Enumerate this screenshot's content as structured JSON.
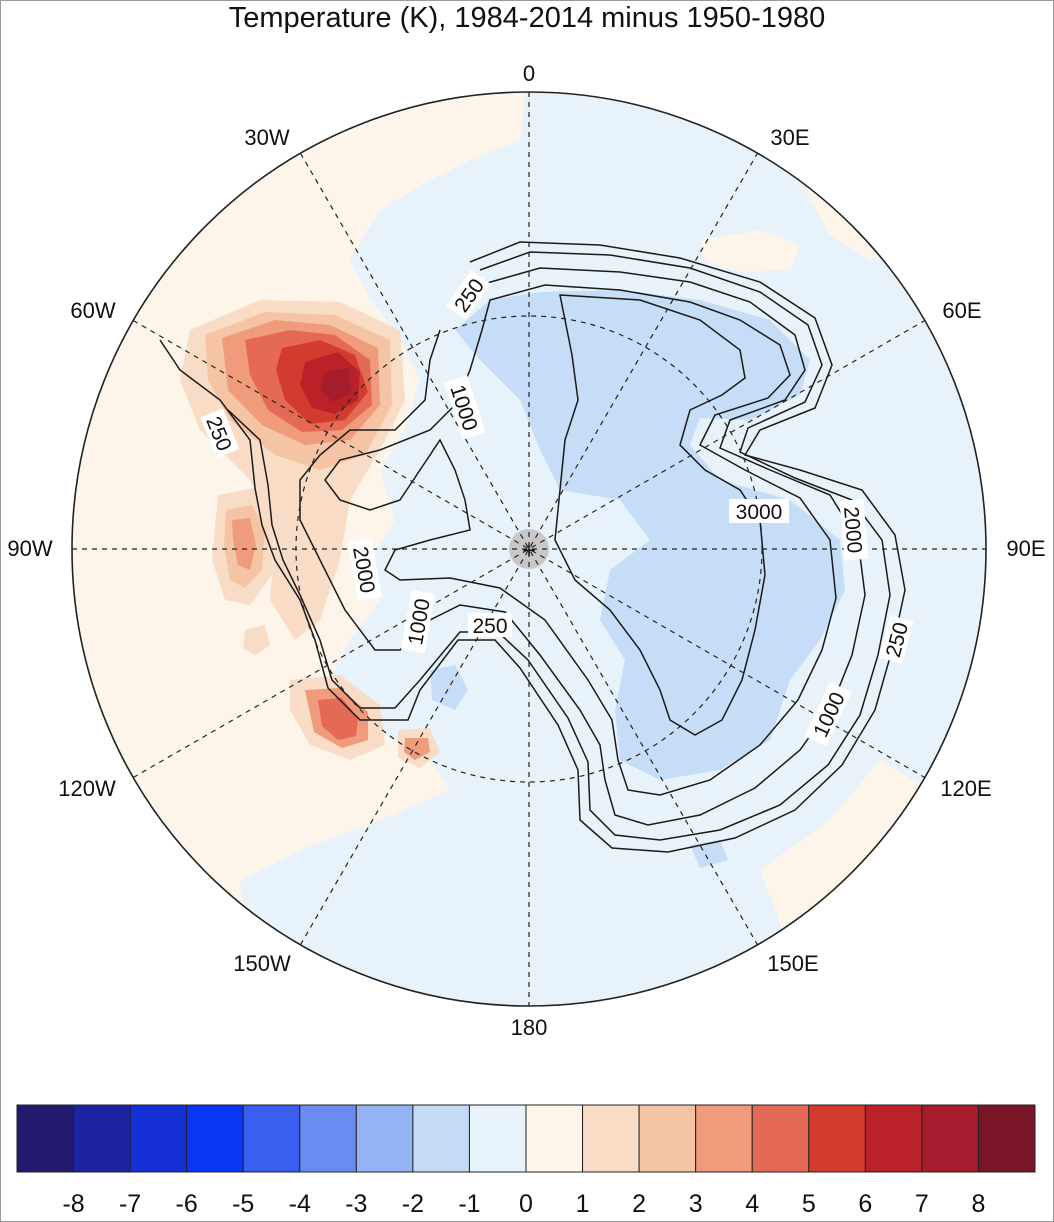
{
  "title": "Temperature (K), 1984-2014 minus 1950-1980",
  "map": {
    "projection": "south polar stereographic",
    "longitude_labels": [
      {
        "text": "0",
        "lon": 0
      },
      {
        "text": "30E",
        "lon": 30
      },
      {
        "text": "60E",
        "lon": 60
      },
      {
        "text": "90E",
        "lon": 90
      },
      {
        "text": "120E",
        "lon": 120
      },
      {
        "text": "150E",
        "lon": 150
      },
      {
        "text": "180",
        "lon": 180
      },
      {
        "text": "150W",
        "lon": -150
      },
      {
        "text": "120W",
        "lon": -120
      },
      {
        "text": "90W",
        "lon": -90
      },
      {
        "text": "60W",
        "lon": -60
      },
      {
        "text": "30W",
        "lon": -30
      }
    ],
    "elevation_contours": [
      "250",
      "1000",
      "2000",
      "3000"
    ],
    "contour_labels": [
      "250",
      "1000",
      "250",
      "2000",
      "1000",
      "250",
      "3000",
      "2000",
      "1000",
      "250"
    ],
    "colors": {
      "background": "#fdf5ea",
      "neg1": "#e8f2fb",
      "neg2": "#c5ddf6",
      "pos1": "#fce9d8",
      "pos2": "#f5c4a4",
      "pos3": "#ef9b7c",
      "pos4": "#e46a55",
      "pos5": "#d43b2f",
      "pos6": "#ba2229",
      "pos7": "#8d1825"
    }
  },
  "colorbar": {
    "ticks": [
      "-8",
      "-7",
      "-6",
      "-5",
      "-4",
      "-3",
      "-2",
      "-1",
      "0",
      "1",
      "2",
      "3",
      "4",
      "5",
      "6",
      "7",
      "8"
    ],
    "colors": [
      "#221a6e",
      "#1c24a2",
      "#1430d6",
      "#0836f2",
      "#3a5ff0",
      "#6a8cf1",
      "#94b3f3",
      "#c4dbf6",
      "#e8f2fb",
      "#fdf5ea",
      "#f9dcc6",
      "#f5c4a4",
      "#ef9b7c",
      "#e46a55",
      "#d43b2f",
      "#ba2229",
      "#a51d2d",
      "#7a1528"
    ]
  }
}
